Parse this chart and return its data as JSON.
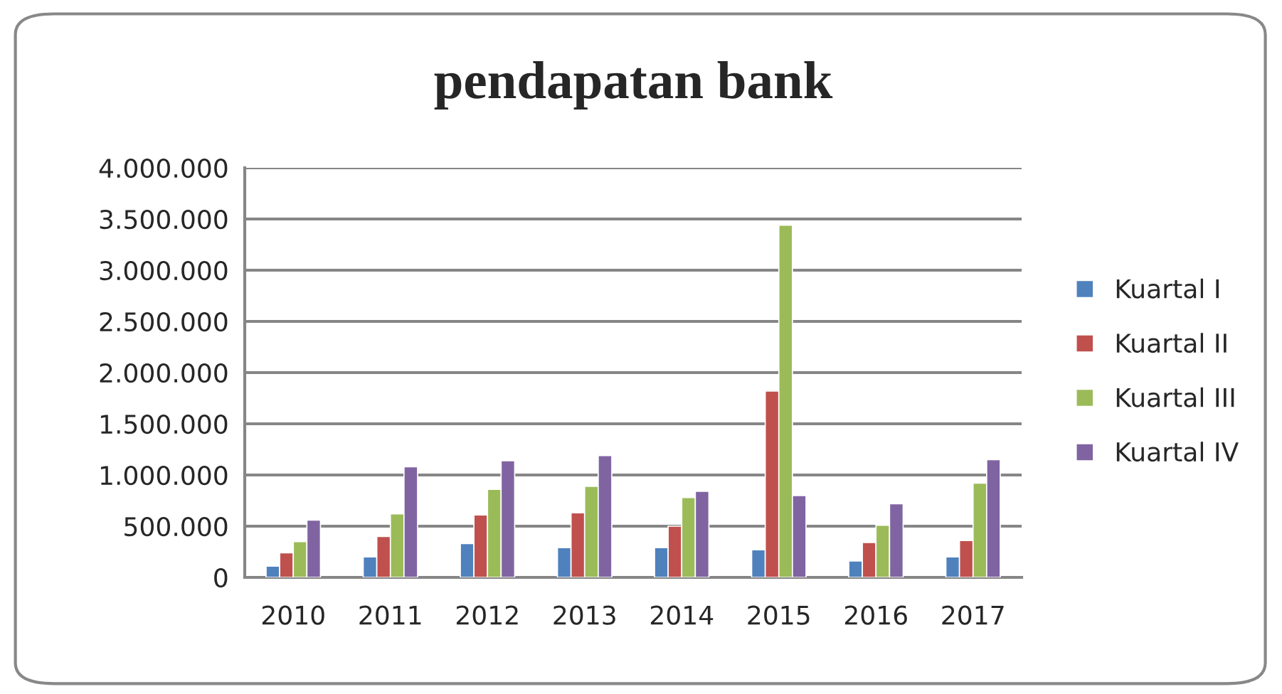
{
  "chart_data": {
    "type": "bar",
    "title": "pendapatan bank",
    "categories": [
      "2010",
      "2011",
      "2012",
      "2013",
      "2014",
      "2015",
      "2016",
      "2017"
    ],
    "series": [
      {
        "name": "Kuartal I",
        "color": "#4f81bd",
        "values": [
          110000,
          200000,
          330000,
          290000,
          290000,
          270000,
          160000,
          200000
        ]
      },
      {
        "name": "Kuartal II",
        "color": "#c0504d",
        "values": [
          240000,
          400000,
          610000,
          630000,
          500000,
          1820000,
          340000,
          360000
        ]
      },
      {
        "name": "Kuartal III",
        "color": "#9bbb59",
        "values": [
          350000,
          620000,
          860000,
          890000,
          780000,
          3440000,
          510000,
          920000
        ]
      },
      {
        "name": "Kuartal IV",
        "color": "#8064a2",
        "values": [
          560000,
          1080000,
          1140000,
          1190000,
          840000,
          800000,
          720000,
          1150000
        ]
      }
    ],
    "ylim": [
      0,
      4000000
    ],
    "yticks": [
      0,
      {
        "value": 500000,
        "label": "500.000"
      },
      {
        "value": 1000000,
        "label": "1.000.000"
      },
      {
        "value": 1500000,
        "label": "1.500.000"
      },
      {
        "value": 2000000,
        "label": "2.000.000"
      },
      {
        "value": 2500000,
        "label": "2.500.000"
      },
      {
        "value": 3000000,
        "label": "3.000.000"
      },
      {
        "value": 3500000,
        "label": "3.500.000"
      },
      {
        "value": 4000000,
        "label": "4.000.000"
      }
    ],
    "grid": "y",
    "legend": "right"
  }
}
